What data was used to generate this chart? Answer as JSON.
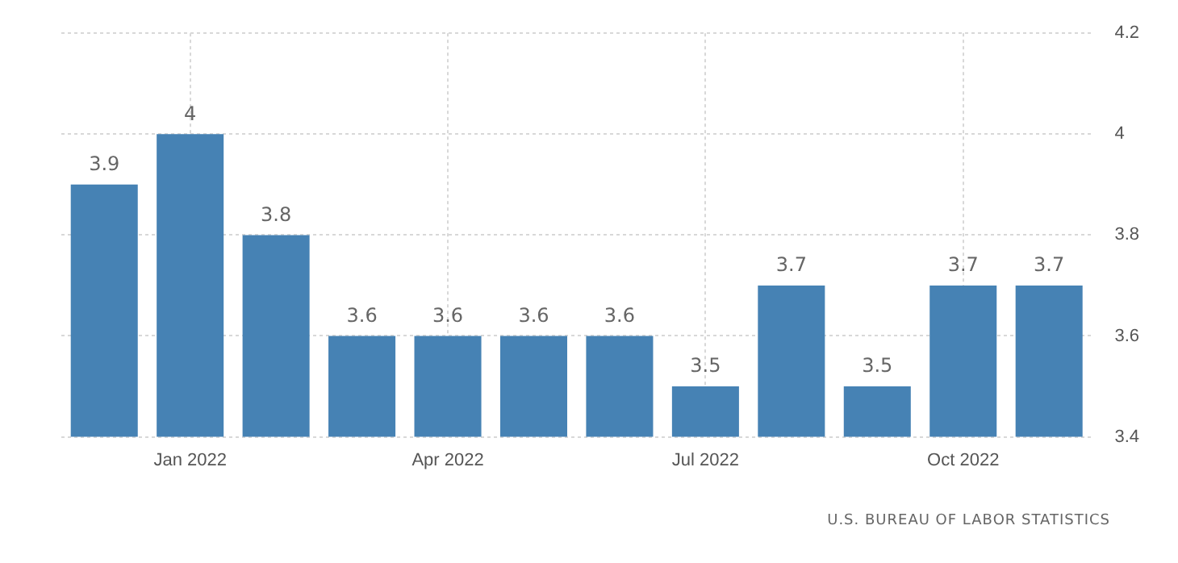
{
  "chart_data": {
    "type": "bar",
    "categories": [
      null,
      "Jan 2022",
      null,
      null,
      "Apr 2022",
      null,
      null,
      "Jul 2022",
      null,
      null,
      "Oct 2022",
      null
    ],
    "values": [
      3.9,
      4,
      3.8,
      3.6,
      3.6,
      3.6,
      3.6,
      3.5,
      3.7,
      3.5,
      3.7,
      3.7
    ],
    "color": "#4682b4",
    "ylim": [
      3.4,
      4.2
    ],
    "yticks": [
      3.4,
      3.6,
      3.8,
      4,
      4.2
    ],
    "grid": true,
    "data_labels": true,
    "legend": false,
    "annotations": [
      "U.S. BUREAU OF LABOR STATISTICS"
    ]
  }
}
